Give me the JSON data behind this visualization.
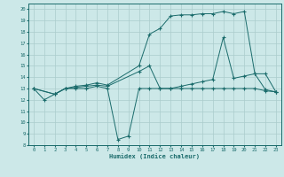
{
  "xlabel": "Humidex (Indice chaleur)",
  "xlim": [
    -0.5,
    23.5
  ],
  "ylim": [
    8,
    20.5
  ],
  "xticks": [
    0,
    1,
    2,
    3,
    4,
    5,
    6,
    7,
    8,
    9,
    10,
    11,
    12,
    13,
    14,
    15,
    16,
    17,
    18,
    19,
    20,
    21,
    22,
    23
  ],
  "yticks": [
    8,
    9,
    10,
    11,
    12,
    13,
    14,
    15,
    16,
    17,
    18,
    19,
    20
  ],
  "bg_color": "#cce8e8",
  "grid_color": "#aacccc",
  "line_color": "#1a6b6b",
  "line1_x": [
    0,
    1,
    2,
    3,
    4,
    5,
    6,
    7,
    8,
    9,
    10,
    11,
    12,
    13,
    14,
    15,
    16,
    17,
    18,
    19,
    20,
    21,
    22,
    23
  ],
  "line1_y": [
    13,
    12,
    12.5,
    13,
    13,
    13,
    13.2,
    13,
    8.5,
    8.8,
    13,
    13,
    13,
    13,
    13,
    13,
    13,
    13,
    13,
    13,
    13,
    13,
    12.8,
    12.7
  ],
  "line2_x": [
    0,
    2,
    3,
    4,
    5,
    6,
    7,
    10,
    11,
    12,
    13,
    14,
    15,
    16,
    17,
    18,
    19,
    20,
    21,
    22,
    23
  ],
  "line2_y": [
    13,
    12.5,
    13,
    13.2,
    13.3,
    13.5,
    13.3,
    15,
    17.8,
    18.3,
    19.4,
    19.5,
    19.5,
    19.6,
    19.6,
    19.8,
    19.6,
    19.8,
    14.3,
    14.3,
    12.7
  ],
  "line3_x": [
    0,
    2,
    3,
    4,
    5,
    6,
    7,
    10,
    11,
    12,
    13,
    14,
    15,
    16,
    17,
    18,
    19,
    20,
    21,
    22,
    23
  ],
  "line3_y": [
    13,
    12.5,
    13,
    13.1,
    13.2,
    13.3,
    13.2,
    14.5,
    15,
    13,
    13,
    13.2,
    13.4,
    13.6,
    13.8,
    17.5,
    13.9,
    14.1,
    14.3,
    12.9,
    12.7
  ]
}
